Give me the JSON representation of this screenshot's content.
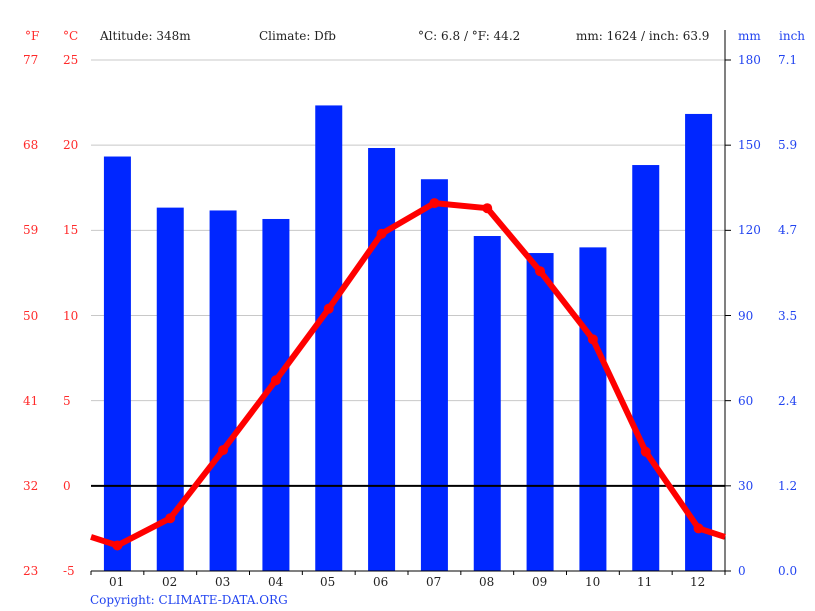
{
  "header": {
    "unit_f": "°F",
    "unit_c": "°C",
    "altitude": "Altitude: 348m",
    "climate": "Climate: Dfb",
    "temp_avg": "°C: 6.8 / °F: 44.2",
    "precip_total": "mm: 1624 / inch: 63.9",
    "unit_mm": "mm",
    "unit_inch": "inch"
  },
  "axes": {
    "fahrenheit": [
      "77",
      "68",
      "59",
      "50",
      "41",
      "32",
      "23"
    ],
    "celsius": [
      "25",
      "20",
      "15",
      "10",
      "5",
      "0",
      "-5"
    ],
    "mm": [
      "180",
      "150",
      "120",
      "90",
      "60",
      "30",
      "0"
    ],
    "inch": [
      "7.1",
      "5.9",
      "4.7",
      "3.5",
      "2.4",
      "1.2",
      "0.0"
    ],
    "months": [
      "01",
      "02",
      "03",
      "04",
      "05",
      "06",
      "07",
      "08",
      "09",
      "10",
      "11",
      "12"
    ]
  },
  "footer": {
    "copyright": "Copyright: CLIMATE-DATA.ORG"
  },
  "colors": {
    "bar": "#0026ff",
    "line": "#ff0000",
    "grid": "#c8c8c8",
    "temp_axis": "#ff2a2a",
    "precip_axis": "#2143f0"
  },
  "chart_data": {
    "type": "bar",
    "title": "",
    "categories": [
      "01",
      "02",
      "03",
      "04",
      "05",
      "06",
      "07",
      "08",
      "09",
      "10",
      "11",
      "12"
    ],
    "series": [
      {
        "name": "Precipitation (mm)",
        "type": "bar",
        "axis": "right",
        "values": [
          146,
          128,
          127,
          124,
          164,
          149,
          138,
          118,
          112,
          114,
          143,
          161
        ]
      },
      {
        "name": "Temperature (°C)",
        "type": "line",
        "axis": "left",
        "values": [
          -3.5,
          -1.9,
          2.1,
          6.2,
          10.4,
          14.8,
          16.6,
          16.3,
          12.6,
          8.6,
          2.0,
          -2.5
        ]
      }
    ],
    "xlabel": "",
    "ylabel_left": "°C / °F",
    "ylabel_right": "mm / inch",
    "ylim_left": [
      -5,
      25
    ],
    "ylim_right": [
      0,
      180
    ],
    "grid": true,
    "legend": "none",
    "annotations": [
      "Altitude: 348m",
      "Climate: Dfb",
      "°C: 6.8 / °F: 44.2",
      "mm: 1624 / inch: 63.9"
    ]
  }
}
